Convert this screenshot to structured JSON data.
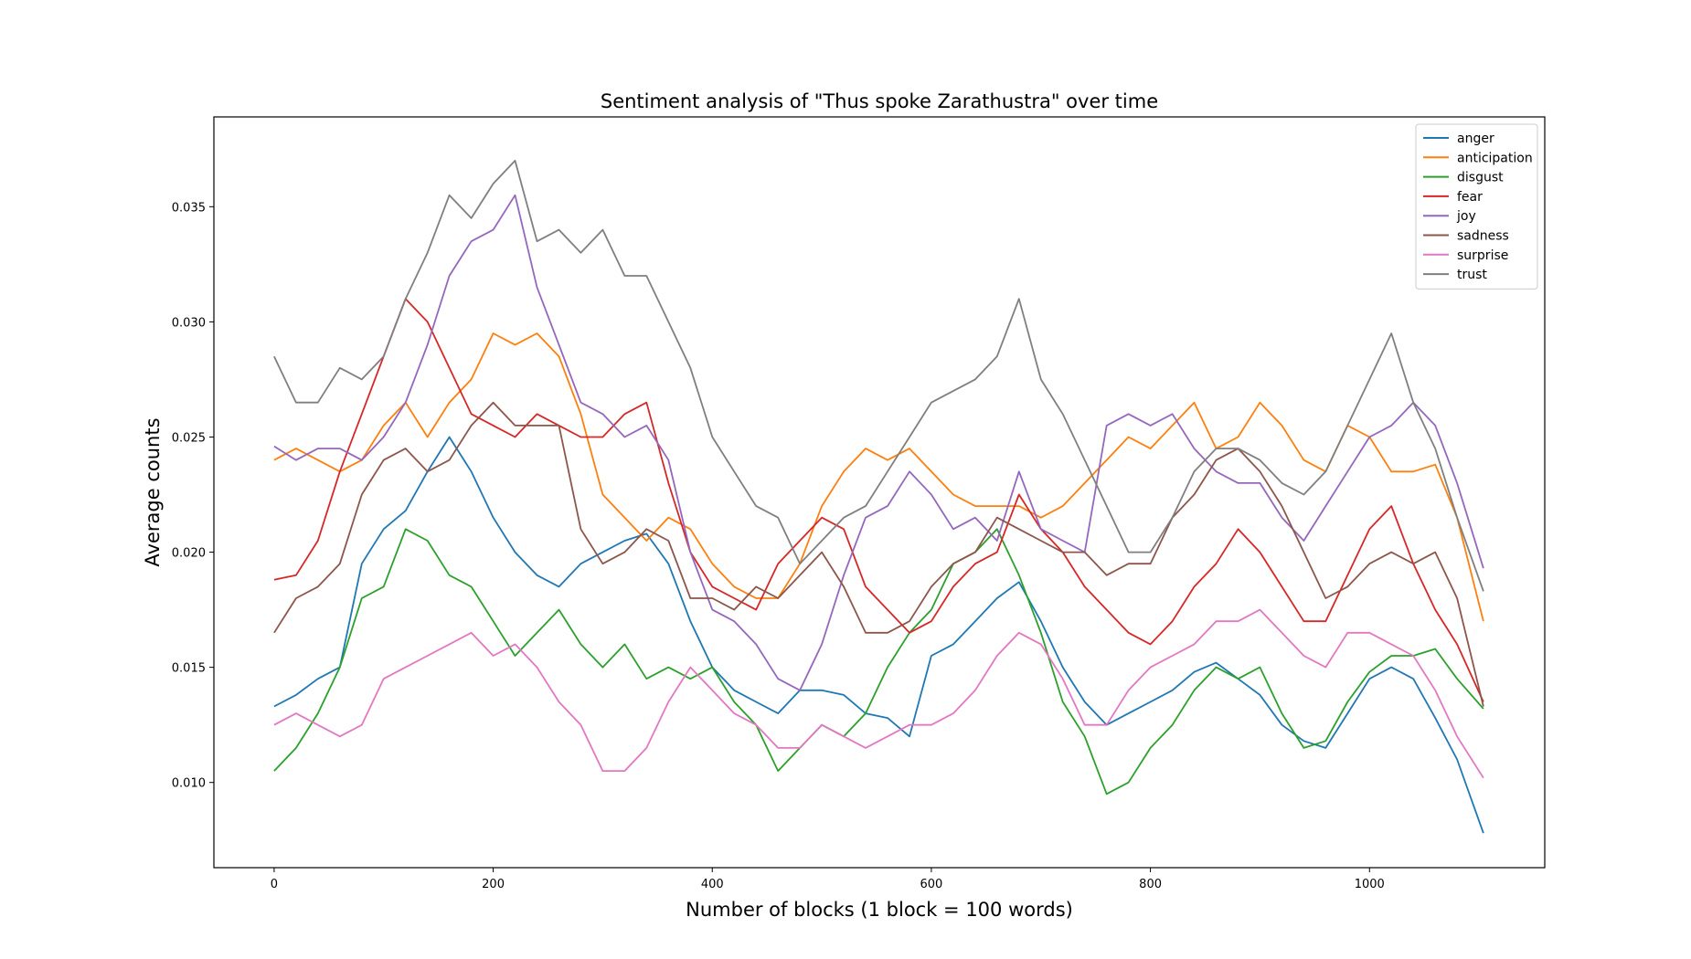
{
  "chart_data": {
    "type": "line",
    "title": "Sentiment analysis of \"Thus spoke Zarathustra\" over time",
    "xlabel": "Number of blocks (1 block = 100 words)",
    "ylabel": "Average counts",
    "xlim": [
      -55,
      1160
    ],
    "ylim": [
      0.0063,
      0.0389
    ],
    "xticks": [
      0,
      200,
      400,
      600,
      800,
      1000
    ],
    "yticks": [
      0.01,
      0.015,
      0.02,
      0.025,
      0.03,
      0.035
    ],
    "xtick_labels": [
      "0",
      "200",
      "400",
      "600",
      "800",
      "1000"
    ],
    "ytick_labels": [
      "0.010",
      "0.015",
      "0.020",
      "0.025",
      "0.030",
      "0.035"
    ],
    "grid": false,
    "legend_position": "top-right",
    "series": [
      {
        "name": "anger",
        "color": "#1f77b4",
        "x": [
          0,
          20,
          40,
          60,
          80,
          100,
          120,
          140,
          160,
          180,
          200,
          220,
          240,
          260,
          280,
          300,
          320,
          340,
          360,
          380,
          400,
          420,
          440,
          460,
          480,
          500,
          520,
          540,
          560,
          580,
          600,
          620,
          640,
          660,
          680,
          700,
          720,
          740,
          760,
          780,
          800,
          820,
          840,
          860,
          880,
          900,
          920,
          940,
          960,
          980,
          1000,
          1020,
          1040,
          1060,
          1080,
          1104
        ],
        "y": [
          0.0133,
          0.0138,
          0.0145,
          0.015,
          0.0195,
          0.021,
          0.0218,
          0.0235,
          0.025,
          0.0235,
          0.0215,
          0.02,
          0.019,
          0.0185,
          0.0195,
          0.02,
          0.0205,
          0.0208,
          0.0195,
          0.017,
          0.015,
          0.014,
          0.0135,
          0.013,
          0.014,
          0.014,
          0.0138,
          0.013,
          0.0128,
          0.012,
          0.0155,
          0.016,
          0.017,
          0.018,
          0.0187,
          0.017,
          0.015,
          0.0135,
          0.0125,
          0.013,
          0.0135,
          0.014,
          0.0148,
          0.0152,
          0.0145,
          0.0138,
          0.0125,
          0.0118,
          0.0115,
          0.013,
          0.0145,
          0.015,
          0.0145,
          0.0128,
          0.011,
          0.0078
        ]
      },
      {
        "name": "anticipation",
        "color": "#ff7f0e",
        "x": [
          0,
          20,
          40,
          60,
          80,
          100,
          120,
          140,
          160,
          180,
          200,
          220,
          240,
          260,
          280,
          300,
          320,
          340,
          360,
          380,
          400,
          420,
          440,
          460,
          480,
          500,
          520,
          540,
          560,
          580,
          600,
          620,
          640,
          660,
          680,
          700,
          720,
          740,
          760,
          780,
          800,
          820,
          840,
          860,
          880,
          900,
          920,
          940,
          960,
          980,
          1000,
          1020,
          1040,
          1060,
          1080,
          1104
        ],
        "y": [
          0.024,
          0.0245,
          0.024,
          0.0235,
          0.024,
          0.0255,
          0.0265,
          0.025,
          0.0265,
          0.0275,
          0.0295,
          0.029,
          0.0295,
          0.0285,
          0.026,
          0.0225,
          0.0215,
          0.0205,
          0.0215,
          0.021,
          0.0195,
          0.0185,
          0.018,
          0.018,
          0.0195,
          0.022,
          0.0235,
          0.0245,
          0.024,
          0.0245,
          0.0235,
          0.0225,
          0.022,
          0.022,
          0.022,
          0.0215,
          0.022,
          0.023,
          0.024,
          0.025,
          0.0245,
          0.0255,
          0.0265,
          0.0245,
          0.025,
          0.0265,
          0.0255,
          0.024,
          0.0235,
          0.0255,
          0.025,
          0.0235,
          0.0235,
          0.0238,
          0.0215,
          0.017
        ]
      },
      {
        "name": "disgust",
        "color": "#2ca02c",
        "x": [
          0,
          20,
          40,
          60,
          80,
          100,
          120,
          140,
          160,
          180,
          200,
          220,
          240,
          260,
          280,
          300,
          320,
          340,
          360,
          380,
          400,
          420,
          440,
          460,
          480,
          500,
          520,
          540,
          560,
          580,
          600,
          620,
          640,
          660,
          680,
          700,
          720,
          740,
          760,
          780,
          800,
          820,
          840,
          860,
          880,
          900,
          920,
          940,
          960,
          980,
          1000,
          1020,
          1040,
          1060,
          1080,
          1104
        ],
        "y": [
          0.0105,
          0.0115,
          0.013,
          0.015,
          0.018,
          0.0185,
          0.021,
          0.0205,
          0.019,
          0.0185,
          0.017,
          0.0155,
          0.0165,
          0.0175,
          0.016,
          0.015,
          0.016,
          0.0145,
          0.015,
          0.0145,
          0.015,
          0.0135,
          0.0125,
          0.0105,
          0.0115,
          0.0125,
          0.012,
          0.013,
          0.015,
          0.0165,
          0.0175,
          0.0195,
          0.02,
          0.021,
          0.019,
          0.0165,
          0.0135,
          0.012,
          0.0095,
          0.01,
          0.0115,
          0.0125,
          0.014,
          0.015,
          0.0145,
          0.015,
          0.013,
          0.0115,
          0.0118,
          0.0135,
          0.0148,
          0.0155,
          0.0155,
          0.0158,
          0.0145,
          0.0132
        ]
      },
      {
        "name": "fear",
        "color": "#d62728",
        "x": [
          0,
          20,
          40,
          60,
          80,
          100,
          120,
          140,
          160,
          180,
          200,
          220,
          240,
          260,
          280,
          300,
          320,
          340,
          360,
          380,
          400,
          420,
          440,
          460,
          480,
          500,
          520,
          540,
          560,
          580,
          600,
          620,
          640,
          660,
          680,
          700,
          720,
          740,
          760,
          780,
          800,
          820,
          840,
          860,
          880,
          900,
          920,
          940,
          960,
          980,
          1000,
          1020,
          1040,
          1060,
          1080,
          1104
        ],
        "y": [
          0.0188,
          0.019,
          0.0205,
          0.0235,
          0.026,
          0.0285,
          0.031,
          0.03,
          0.028,
          0.026,
          0.0255,
          0.025,
          0.026,
          0.0255,
          0.025,
          0.025,
          0.026,
          0.0265,
          0.023,
          0.02,
          0.0185,
          0.018,
          0.0175,
          0.0195,
          0.0205,
          0.0215,
          0.021,
          0.0185,
          0.0175,
          0.0165,
          0.017,
          0.0185,
          0.0195,
          0.02,
          0.0225,
          0.021,
          0.02,
          0.0185,
          0.0175,
          0.0165,
          0.016,
          0.017,
          0.0185,
          0.0195,
          0.021,
          0.02,
          0.0185,
          0.017,
          0.017,
          0.019,
          0.021,
          0.022,
          0.0195,
          0.0175,
          0.016,
          0.0135
        ]
      },
      {
        "name": "joy",
        "color": "#9467bd",
        "x": [
          0,
          20,
          40,
          60,
          80,
          100,
          120,
          140,
          160,
          180,
          200,
          220,
          240,
          260,
          280,
          300,
          320,
          340,
          360,
          380,
          400,
          420,
          440,
          460,
          480,
          500,
          520,
          540,
          560,
          580,
          600,
          620,
          640,
          660,
          680,
          700,
          720,
          740,
          760,
          780,
          800,
          820,
          840,
          860,
          880,
          900,
          920,
          940,
          960,
          980,
          1000,
          1020,
          1040,
          1060,
          1080,
          1104
        ],
        "y": [
          0.0246,
          0.024,
          0.0245,
          0.0245,
          0.024,
          0.025,
          0.0265,
          0.029,
          0.032,
          0.0335,
          0.034,
          0.0355,
          0.0315,
          0.029,
          0.0265,
          0.026,
          0.025,
          0.0255,
          0.024,
          0.02,
          0.0175,
          0.017,
          0.016,
          0.0145,
          0.014,
          0.016,
          0.019,
          0.0215,
          0.022,
          0.0235,
          0.0225,
          0.021,
          0.0215,
          0.0205,
          0.0235,
          0.021,
          0.0205,
          0.02,
          0.0255,
          0.026,
          0.0255,
          0.026,
          0.0245,
          0.0235,
          0.023,
          0.023,
          0.0215,
          0.0205,
          0.022,
          0.0235,
          0.025,
          0.0255,
          0.0265,
          0.0255,
          0.023,
          0.0193
        ]
      },
      {
        "name": "sadness",
        "color": "#8c564b",
        "x": [
          0,
          20,
          40,
          60,
          80,
          100,
          120,
          140,
          160,
          180,
          200,
          220,
          240,
          260,
          280,
          300,
          320,
          340,
          360,
          380,
          400,
          420,
          440,
          460,
          480,
          500,
          520,
          540,
          560,
          580,
          600,
          620,
          640,
          660,
          680,
          700,
          720,
          740,
          760,
          780,
          800,
          820,
          840,
          860,
          880,
          900,
          920,
          940,
          960,
          980,
          1000,
          1020,
          1040,
          1060,
          1080,
          1104
        ],
        "y": [
          0.0165,
          0.018,
          0.0185,
          0.0195,
          0.0225,
          0.024,
          0.0245,
          0.0235,
          0.024,
          0.0255,
          0.0265,
          0.0255,
          0.0255,
          0.0255,
          0.021,
          0.0195,
          0.02,
          0.021,
          0.0205,
          0.018,
          0.018,
          0.0175,
          0.0185,
          0.018,
          0.019,
          0.02,
          0.0185,
          0.0165,
          0.0165,
          0.017,
          0.0185,
          0.0195,
          0.02,
          0.0215,
          0.021,
          0.0205,
          0.02,
          0.02,
          0.019,
          0.0195,
          0.0195,
          0.0215,
          0.0225,
          0.024,
          0.0245,
          0.0235,
          0.022,
          0.02,
          0.018,
          0.0185,
          0.0195,
          0.02,
          0.0195,
          0.02,
          0.018,
          0.0133
        ]
      },
      {
        "name": "surprise",
        "color": "#e377c2",
        "x": [
          0,
          20,
          40,
          60,
          80,
          100,
          120,
          140,
          160,
          180,
          200,
          220,
          240,
          260,
          280,
          300,
          320,
          340,
          360,
          380,
          400,
          420,
          440,
          460,
          480,
          500,
          520,
          540,
          560,
          580,
          600,
          620,
          640,
          660,
          680,
          700,
          720,
          740,
          760,
          780,
          800,
          820,
          840,
          860,
          880,
          900,
          920,
          940,
          960,
          980,
          1000,
          1020,
          1040,
          1060,
          1080,
          1104
        ],
        "y": [
          0.0125,
          0.013,
          0.0125,
          0.012,
          0.0125,
          0.0145,
          0.015,
          0.0155,
          0.016,
          0.0165,
          0.0155,
          0.016,
          0.015,
          0.0135,
          0.0125,
          0.0105,
          0.0105,
          0.0115,
          0.0135,
          0.015,
          0.014,
          0.013,
          0.0125,
          0.0115,
          0.0115,
          0.0125,
          0.012,
          0.0115,
          0.012,
          0.0125,
          0.0125,
          0.013,
          0.014,
          0.0155,
          0.0165,
          0.016,
          0.0145,
          0.0125,
          0.0125,
          0.014,
          0.015,
          0.0155,
          0.016,
          0.017,
          0.017,
          0.0175,
          0.0165,
          0.0155,
          0.015,
          0.0165,
          0.0165,
          0.016,
          0.0155,
          0.014,
          0.012,
          0.0102
        ]
      },
      {
        "name": "trust",
        "color": "#7f7f7f",
        "x": [
          0,
          20,
          40,
          60,
          80,
          100,
          120,
          140,
          160,
          180,
          200,
          220,
          240,
          260,
          280,
          300,
          320,
          340,
          360,
          380,
          400,
          420,
          440,
          460,
          480,
          500,
          520,
          540,
          560,
          580,
          600,
          620,
          640,
          660,
          680,
          700,
          720,
          740,
          760,
          780,
          800,
          820,
          840,
          860,
          880,
          900,
          920,
          940,
          960,
          980,
          1000,
          1020,
          1040,
          1060,
          1080,
          1104
        ],
        "y": [
          0.0285,
          0.0265,
          0.0265,
          0.028,
          0.0275,
          0.0285,
          0.031,
          0.033,
          0.0355,
          0.0345,
          0.036,
          0.037,
          0.0335,
          0.034,
          0.033,
          0.034,
          0.032,
          0.032,
          0.03,
          0.028,
          0.025,
          0.0235,
          0.022,
          0.0215,
          0.0195,
          0.0205,
          0.0215,
          0.022,
          0.0235,
          0.025,
          0.0265,
          0.027,
          0.0275,
          0.0285,
          0.031,
          0.0275,
          0.026,
          0.024,
          0.022,
          0.02,
          0.02,
          0.0215,
          0.0235,
          0.0245,
          0.0245,
          0.024,
          0.023,
          0.0225,
          0.0235,
          0.0255,
          0.0275,
          0.0295,
          0.0265,
          0.0245,
          0.0215,
          0.0183
        ]
      }
    ]
  }
}
